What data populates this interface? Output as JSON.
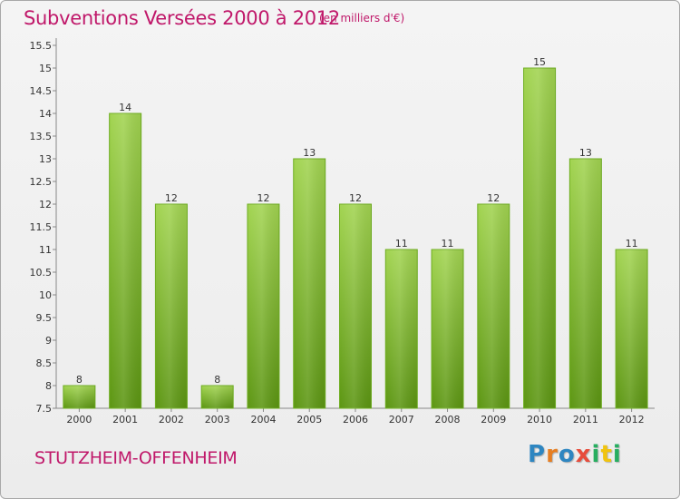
{
  "chart_data": {
    "type": "bar",
    "title": "Subventions Versées 2000 à 2012",
    "subtitle": "(en milliers d'€)",
    "categories": [
      "2000",
      "2001",
      "2002",
      "2003",
      "2004",
      "2005",
      "2006",
      "2007",
      "2008",
      "2009",
      "2010",
      "2011",
      "2012"
    ],
    "values": [
      8,
      14,
      12,
      8,
      12,
      13,
      12,
      11,
      11,
      12,
      15,
      13,
      11
    ],
    "ylim": [
      7.5,
      15.5
    ],
    "yticks": [
      "7.5",
      "8",
      "8.5",
      "9",
      "9.5",
      "10",
      "10.5",
      "11",
      "11.5",
      "12",
      "12.5",
      "13",
      "13.5",
      "14",
      "14.5",
      "15",
      "15.5"
    ],
    "grid": false,
    "colors": {
      "bar_top": "#9ccd4a",
      "bar_bottom": "#5f9a14",
      "text_accent": "#c0186a"
    }
  },
  "footer": {
    "commune": "STUTZHEIM-OFFENHEIM",
    "logo": "Proxiti"
  }
}
